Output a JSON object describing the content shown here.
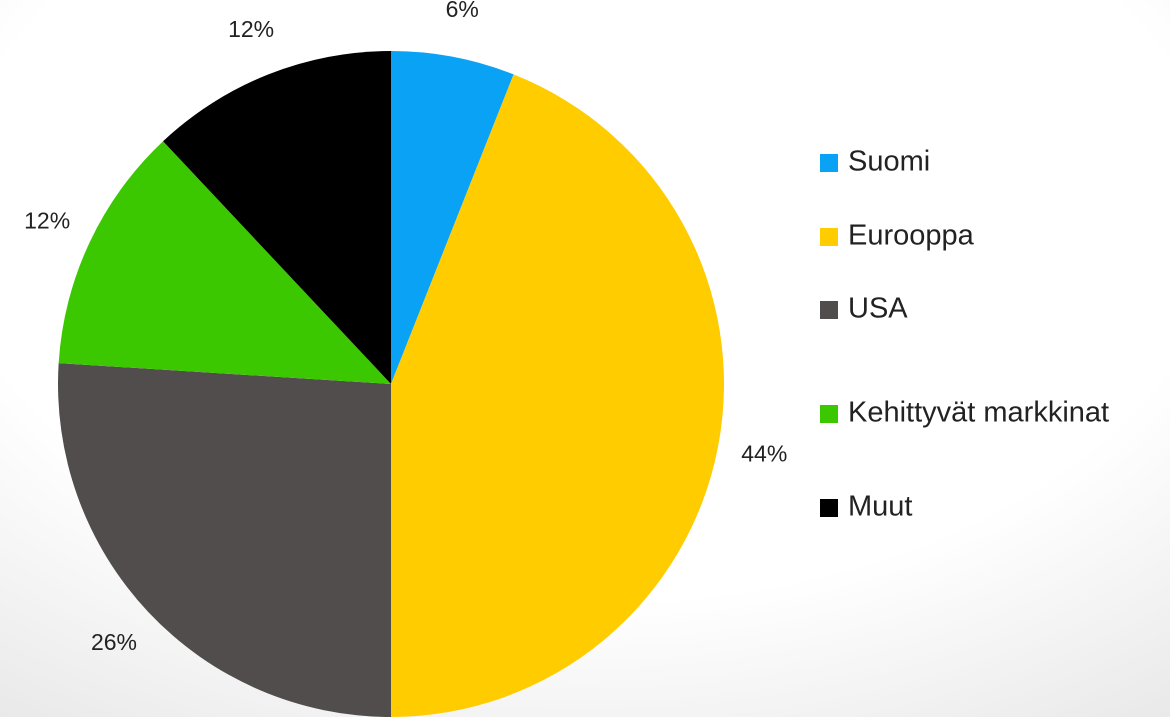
{
  "chart_data": {
    "type": "pie",
    "categories": [
      "Suomi",
      "Eurooppa",
      "USA",
      "Kehittyvät markkinat",
      "Muut"
    ],
    "values": [
      6,
      44,
      26,
      12,
      12
    ],
    "value_labels": [
      "6%",
      "44%",
      "26%",
      "12%",
      "12%"
    ],
    "colors": [
      "#0aa2f5",
      "#ffcc00",
      "#514d4c",
      "#3cc800",
      "#000000"
    ],
    "legend": "right"
  }
}
